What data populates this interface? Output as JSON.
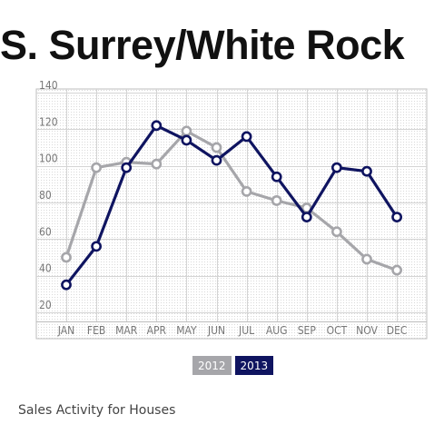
{
  "title": "S. Surrey/White Rock",
  "subtitle": "Sales Activity for Houses",
  "colors": {
    "2012": "#a6a6aa",
    "2013": "#0f1460",
    "grid": "#d4d4d4",
    "plot_border": "#bdbdbd"
  },
  "chart_data": {
    "type": "line",
    "categories": [
      "JAN",
      "FEB",
      "MAR",
      "APR",
      "MAY",
      "JUN",
      "JUL",
      "AUG",
      "SEP",
      "OCT",
      "NOV",
      "DEC"
    ],
    "ylim": [
      15,
      142
    ],
    "yticks": [
      20,
      40,
      60,
      80,
      100,
      120,
      140
    ],
    "grid": true,
    "legend_position": "bottom-center",
    "series": [
      {
        "name": "2012",
        "values": [
          50,
          99,
          102,
          101,
          119,
          110,
          86,
          81,
          77,
          64,
          49,
          43
        ]
      },
      {
        "name": "2013",
        "values": [
          35,
          56,
          99,
          122,
          114,
          103,
          116,
          94,
          72,
          99,
          97,
          72
        ]
      }
    ]
  }
}
